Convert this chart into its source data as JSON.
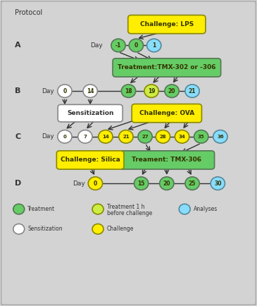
{
  "bg_color": "#d3d3d3",
  "border_color": "#999999",
  "title": "Protocol",
  "protocol_A": "A",
  "protocol_B": "B",
  "protocol_C": "C",
  "protocol_D": "D",
  "challenge_lps_label": "Challenge: LPS",
  "treatment_tmx_label": "Treatment:TMX-302 or -306",
  "sensitization_label": "Sensitization",
  "challenge_ova_label": "Challenge: OVA",
  "treatment_tmx306_label": "Treament: TMX-306",
  "challenge_silica_label": "Challenge: Silica",
  "colors": {
    "green": "#66cc66",
    "yellow_green": "#ccee44",
    "yellow": "#ffee00",
    "light_blue": "#88ddff",
    "white": "#ffffff"
  }
}
